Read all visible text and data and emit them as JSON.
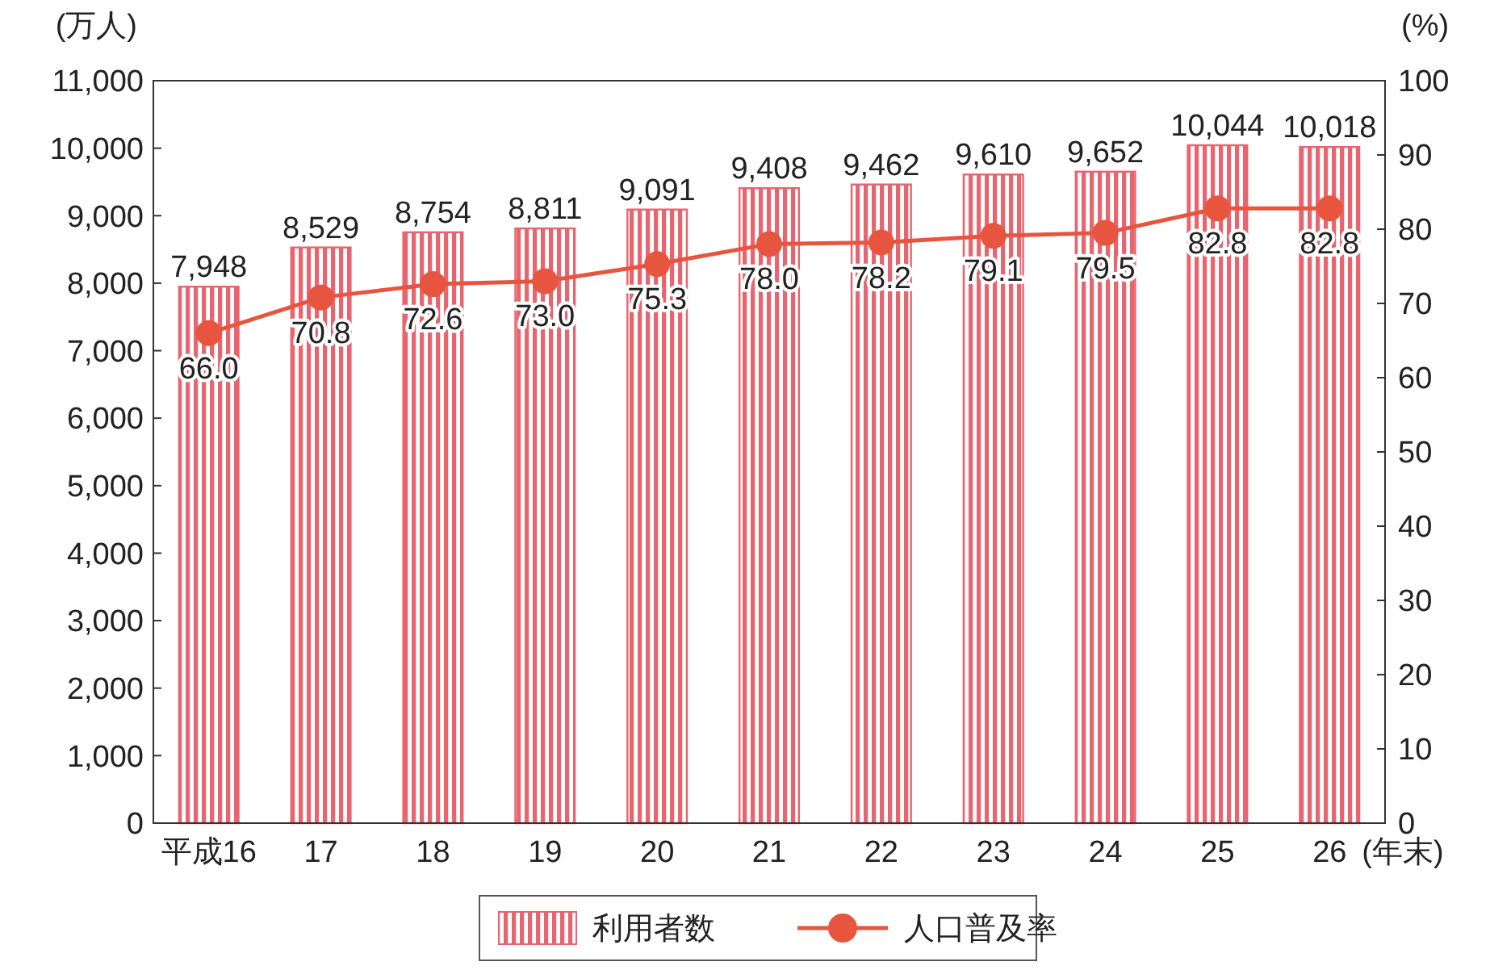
{
  "chart_data": {
    "type": "bar",
    "ylabel": "(万人)",
    "y2label": "(%)",
    "xlabel": "(年末)",
    "categories": [
      "平成16",
      "17",
      "18",
      "19",
      "20",
      "21",
      "22",
      "23",
      "24",
      "25",
      "26"
    ],
    "series": [
      {
        "name": "利用者数",
        "color": "#e8646e",
        "values": [
          7948,
          8529,
          8754,
          8811,
          9091,
          9408,
          9462,
          9610,
          9652,
          10044,
          10018
        ],
        "value_labels": [
          "7,948",
          "8,529",
          "8,754",
          "8,811",
          "9,091",
          "9,408",
          "9,462",
          "9,610",
          "9,652",
          "10,044",
          "10,018"
        ]
      },
      {
        "name": "人口普及率",
        "type": "line",
        "axis": "y2",
        "color": "#e8553f",
        "values": [
          66.0,
          70.8,
          72.6,
          73.0,
          75.3,
          78.0,
          78.2,
          79.1,
          79.5,
          82.8,
          82.8
        ],
        "value_labels": [
          "66.0",
          "70.8",
          "72.6",
          "73.0",
          "75.3",
          "78.0",
          "78.2",
          "79.1",
          "79.5",
          "82.8",
          "82.8"
        ]
      }
    ],
    "ylim": [
      0,
      11000
    ],
    "yticks": [
      {
        "value": 0,
        "label": "0"
      },
      {
        "value": 1000,
        "label": "1,000"
      },
      {
        "value": 2000,
        "label": "2,000"
      },
      {
        "value": 3000,
        "label": "3,000"
      },
      {
        "value": 4000,
        "label": "4,000"
      },
      {
        "value": 5000,
        "label": "5,000"
      },
      {
        "value": 6000,
        "label": "6,000"
      },
      {
        "value": 7000,
        "label": "7,000"
      },
      {
        "value": 8000,
        "label": "8,000"
      },
      {
        "value": 9000,
        "label": "9,000"
      },
      {
        "value": 10000,
        "label": "10,000"
      },
      {
        "value": 11000,
        "label": "11,000"
      }
    ],
    "y2lim": [
      0,
      100
    ],
    "y2ticks": [
      0,
      10,
      20,
      30,
      40,
      50,
      60,
      70,
      80,
      90,
      100
    ],
    "marker": "circle",
    "legend": "bottom",
    "grid": false
  }
}
